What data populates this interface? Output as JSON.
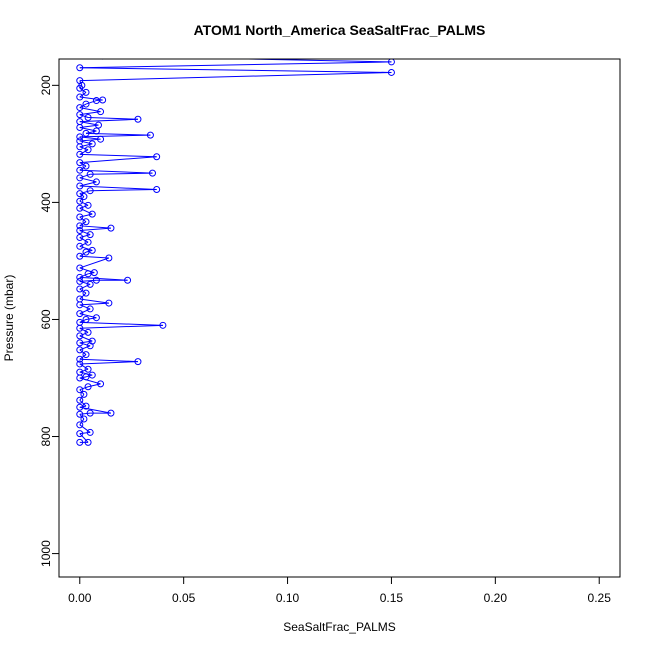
{
  "chart_data": {
    "type": "line",
    "title": "ATOM1 North_America SeaSaltFrac_PALMS",
    "xlabel": "SeaSaltFrac_PALMS",
    "ylabel": "Pressure (mbar)",
    "xlim": [
      -0.01,
      0.26
    ],
    "ylim": [
      1040,
      155
    ],
    "y_reversed": true,
    "x_ticks": [
      0.0,
      0.05,
      0.1,
      0.15,
      0.2,
      0.25
    ],
    "x_tick_labels": [
      "0.00",
      "0.05",
      "0.10",
      "0.15",
      "0.20",
      "0.25"
    ],
    "y_ticks": [
      200,
      400,
      600,
      800,
      1000
    ],
    "y_tick_labels": [
      "200",
      "400",
      "600",
      "800",
      "1000"
    ],
    "grid": false,
    "legend": false,
    "markers": "open-circle",
    "series": [
      {
        "color": "#0000ff",
        "points": [
          [
            0.0,
            810
          ],
          [
            0.004,
            810
          ],
          [
            0.0,
            795
          ],
          [
            0.005,
            793
          ],
          [
            0.0,
            780
          ],
          [
            0.002,
            770
          ],
          [
            0.0,
            762
          ],
          [
            0.005,
            760
          ],
          [
            0.015,
            760
          ],
          [
            0.0,
            750
          ],
          [
            0.003,
            748
          ],
          [
            0.0,
            738
          ],
          [
            0.002,
            728
          ],
          [
            0.0,
            720
          ],
          [
            0.004,
            715
          ],
          [
            0.01,
            710
          ],
          [
            0.0,
            700
          ],
          [
            0.003,
            698
          ],
          [
            0.006,
            695
          ],
          [
            0.0,
            690
          ],
          [
            0.004,
            685
          ],
          [
            0.0,
            676
          ],
          [
            0.028,
            672
          ],
          [
            0.0,
            668
          ],
          [
            0.003,
            660
          ],
          [
            0.0,
            652
          ],
          [
            0.005,
            645
          ],
          [
            0.0,
            640
          ],
          [
            0.006,
            637
          ],
          [
            0.0,
            628
          ],
          [
            0.004,
            622
          ],
          [
            0.0,
            615
          ],
          [
            0.04,
            610
          ],
          [
            0.0,
            605
          ],
          [
            0.003,
            600
          ],
          [
            0.008,
            597
          ],
          [
            0.0,
            590
          ],
          [
            0.005,
            582
          ],
          [
            0.0,
            575
          ],
          [
            0.014,
            572
          ],
          [
            0.0,
            565
          ],
          [
            0.003,
            555
          ],
          [
            0.0,
            548
          ],
          [
            0.005,
            540
          ],
          [
            0.0,
            535
          ],
          [
            0.008,
            533
          ],
          [
            0.023,
            533
          ],
          [
            0.0,
            528
          ],
          [
            0.004,
            522
          ],
          [
            0.007,
            520
          ],
          [
            0.0,
            512
          ],
          [
            0.014,
            495
          ],
          [
            0.0,
            492
          ],
          [
            0.003,
            485
          ],
          [
            0.006,
            482
          ],
          [
            0.0,
            475
          ],
          [
            0.004,
            468
          ],
          [
            0.0,
            460
          ],
          [
            0.005,
            455
          ],
          [
            0.0,
            448
          ],
          [
            0.015,
            444
          ],
          [
            0.0,
            440
          ],
          [
            0.003,
            433
          ],
          [
            0.0,
            425
          ],
          [
            0.006,
            420
          ],
          [
            0.0,
            410
          ],
          [
            0.004,
            405
          ],
          [
            0.0,
            398
          ],
          [
            0.002,
            390
          ],
          [
            0.0,
            385
          ],
          [
            0.005,
            380
          ],
          [
            0.037,
            378
          ],
          [
            0.0,
            372
          ],
          [
            0.008,
            365
          ],
          [
            0.0,
            358
          ],
          [
            0.005,
            352
          ],
          [
            0.035,
            350
          ],
          [
            0.0,
            345
          ],
          [
            0.003,
            338
          ],
          [
            0.0,
            332
          ],
          [
            0.037,
            322
          ],
          [
            0.0,
            318
          ],
          [
            0.004,
            310
          ],
          [
            0.0,
            305
          ],
          [
            0.006,
            300
          ],
          [
            0.0,
            295
          ],
          [
            0.01,
            292
          ],
          [
            0.0,
            288
          ],
          [
            0.034,
            285
          ],
          [
            0.003,
            282
          ],
          [
            0.008,
            278
          ],
          [
            0.0,
            272
          ],
          [
            0.009,
            268
          ],
          [
            0.0,
            262
          ],
          [
            0.028,
            258
          ],
          [
            0.004,
            255
          ],
          [
            0.0,
            250
          ],
          [
            0.01,
            245
          ],
          [
            0.0,
            238
          ],
          [
            0.003,
            232
          ],
          [
            0.008,
            226
          ],
          [
            0.011,
            225
          ],
          [
            0.0,
            220
          ],
          [
            0.003,
            212
          ],
          [
            0.0,
            205
          ],
          [
            0.001,
            200
          ],
          [
            0.0,
            192
          ],
          [
            0.15,
            178
          ],
          [
            0.0,
            170
          ],
          [
            0.15,
            160
          ],
          [
            0.011,
            150
          ]
        ]
      }
    ]
  }
}
